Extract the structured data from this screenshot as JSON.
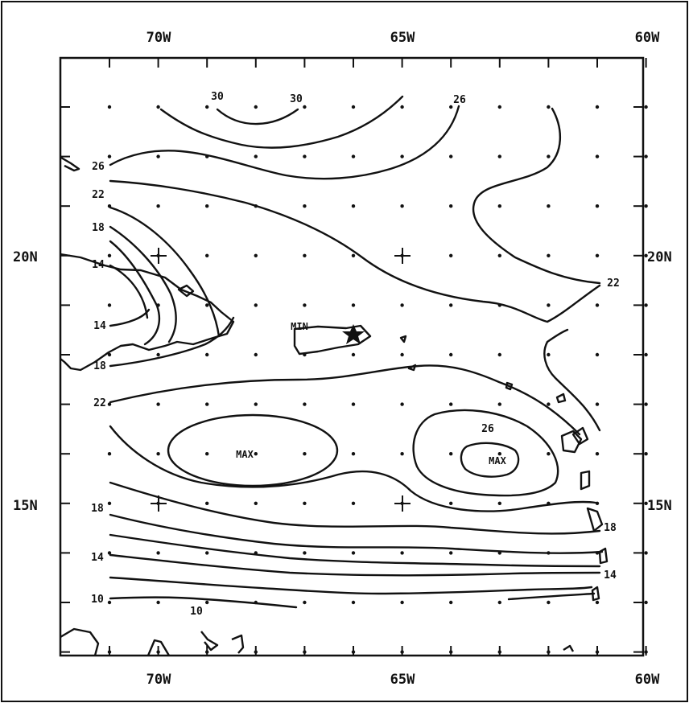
{
  "map": {
    "top_labels": [
      "70W",
      "65W",
      "60W"
    ],
    "bottom_labels": [
      "70W",
      "65W",
      "60W"
    ],
    "left_labels": [
      "20N",
      "15N"
    ],
    "right_labels": [
      "20N",
      "15N"
    ],
    "contour_labels": {
      "c30a": "30",
      "c30b": "30",
      "c26_top": "26",
      "c26_left": "26",
      "c22_left": "22",
      "c18_left": "18",
      "c14_left_upper": "14",
      "c14_left_mid": "14",
      "c18_left_mid": "18",
      "c22_left_lower": "22",
      "c22_right": "22",
      "c26_inner": "26",
      "c18_left_lower": "18",
      "c18_right": "18",
      "c14_left_lower": "14",
      "c14_right": "14",
      "c10_left": "10",
      "c10_bottom": "10"
    },
    "markers": {
      "min": "MIN",
      "max_west": "MAX",
      "max_east": "MAX"
    }
  },
  "colors": {
    "ink": "#111111",
    "paper": "#ffffff"
  }
}
